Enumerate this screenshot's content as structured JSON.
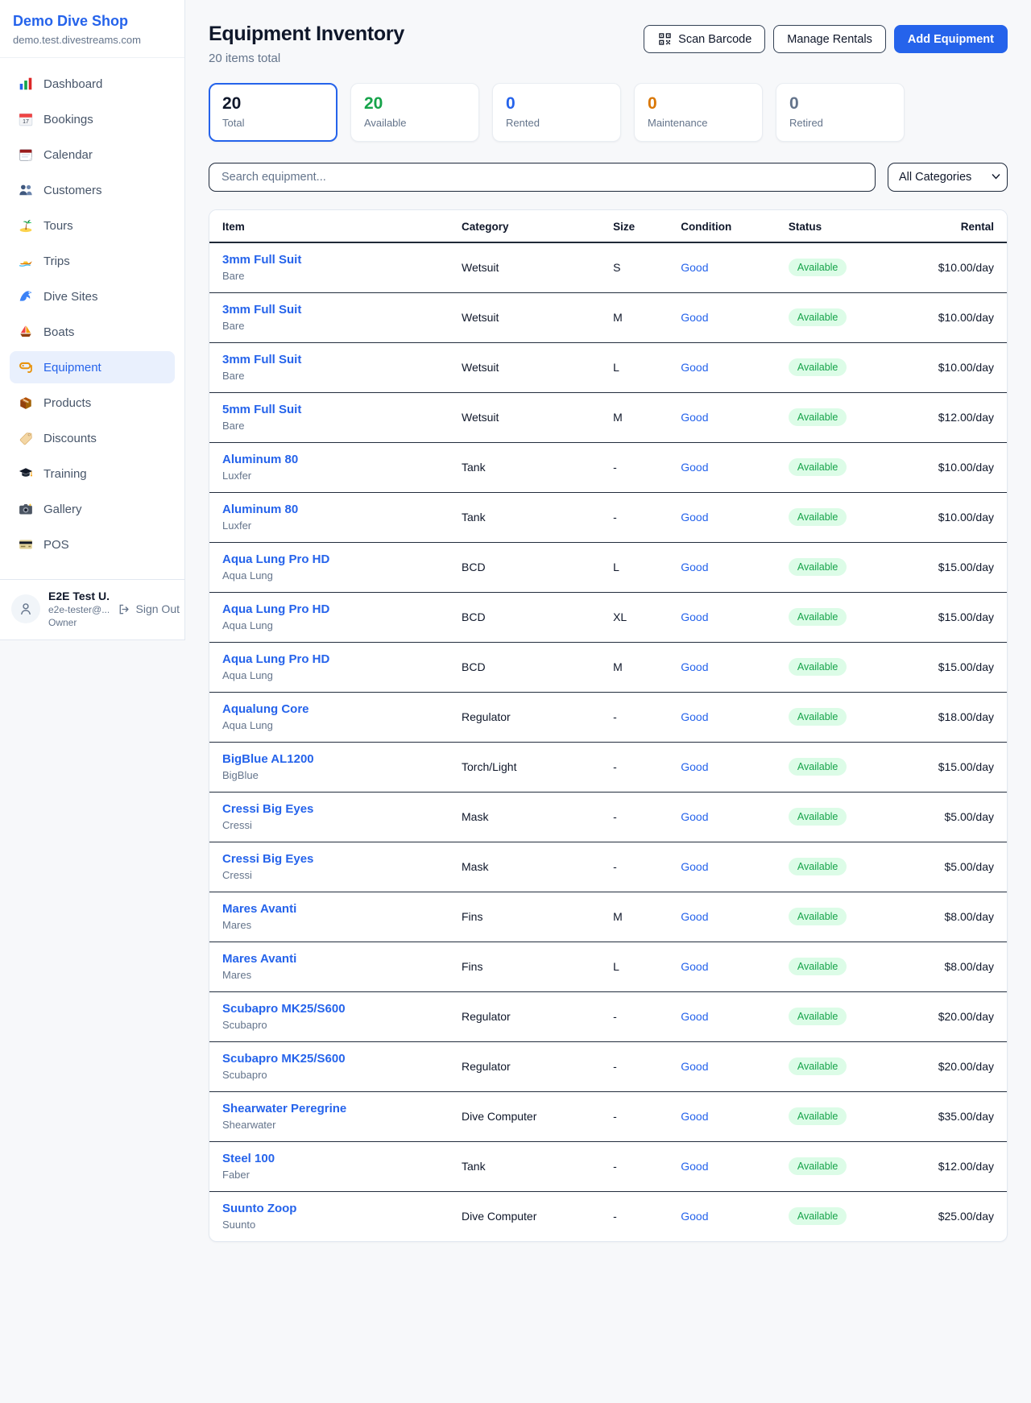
{
  "brand": {
    "name": "Demo Dive Shop",
    "domain": "demo.test.divestreams.com"
  },
  "sidebar": {
    "items": [
      {
        "icon": "dashboard-icon",
        "label": "Dashboard",
        "active": false
      },
      {
        "icon": "bookings-icon",
        "label": "Bookings",
        "active": false
      },
      {
        "icon": "calendar-icon",
        "label": "Calendar",
        "active": false
      },
      {
        "icon": "customers-icon",
        "label": "Customers",
        "active": false
      },
      {
        "icon": "tours-icon",
        "label": "Tours",
        "active": false
      },
      {
        "icon": "trips-icon",
        "label": "Trips",
        "active": false
      },
      {
        "icon": "dive-sites-icon",
        "label": "Dive Sites",
        "active": false
      },
      {
        "icon": "boats-icon",
        "label": "Boats",
        "active": false
      },
      {
        "icon": "equipment-icon",
        "label": "Equipment",
        "active": true
      },
      {
        "icon": "products-icon",
        "label": "Products",
        "active": false
      },
      {
        "icon": "discounts-icon",
        "label": "Discounts",
        "active": false
      },
      {
        "icon": "training-icon",
        "label": "Training",
        "active": false
      },
      {
        "icon": "gallery-icon",
        "label": "Gallery",
        "active": false
      },
      {
        "icon": "pos-icon",
        "label": "POS",
        "active": false
      }
    ],
    "user": {
      "name": "E2E Test U...",
      "email": "e2e-tester@...",
      "role": "Owner",
      "sign_out_label": "Sign Out"
    }
  },
  "header": {
    "title": "Equipment Inventory",
    "subtitle": "20 items total",
    "scan_barcode_label": "Scan Barcode",
    "manage_rentals_label": "Manage Rentals",
    "add_equipment_label": "Add Equipment"
  },
  "stats": [
    {
      "value": "20",
      "label": "Total",
      "color": "#0f172a",
      "selected": true
    },
    {
      "value": "20",
      "label": "Available",
      "color": "#16a34a",
      "selected": false
    },
    {
      "value": "0",
      "label": "Rented",
      "color": "#2563eb",
      "selected": false
    },
    {
      "value": "0",
      "label": "Maintenance",
      "color": "#d97706",
      "selected": false
    },
    {
      "value": "0",
      "label": "Retired",
      "color": "#64748b",
      "selected": false
    }
  ],
  "filters": {
    "search_placeholder": "Search equipment...",
    "category_selected": "All Categories"
  },
  "table": {
    "columns": [
      "Item",
      "Category",
      "Size",
      "Condition",
      "Status",
      "Rental"
    ],
    "rows": [
      {
        "name": "3mm Full Suit",
        "brand": "Bare",
        "category": "Wetsuit",
        "size": "S",
        "condition": "Good",
        "status": "Available",
        "rental": "$10.00/day"
      },
      {
        "name": "3mm Full Suit",
        "brand": "Bare",
        "category": "Wetsuit",
        "size": "M",
        "condition": "Good",
        "status": "Available",
        "rental": "$10.00/day"
      },
      {
        "name": "3mm Full Suit",
        "brand": "Bare",
        "category": "Wetsuit",
        "size": "L",
        "condition": "Good",
        "status": "Available",
        "rental": "$10.00/day"
      },
      {
        "name": "5mm Full Suit",
        "brand": "Bare",
        "category": "Wetsuit",
        "size": "M",
        "condition": "Good",
        "status": "Available",
        "rental": "$12.00/day"
      },
      {
        "name": "Aluminum 80",
        "brand": "Luxfer",
        "category": "Tank",
        "size": "-",
        "condition": "Good",
        "status": "Available",
        "rental": "$10.00/day"
      },
      {
        "name": "Aluminum 80",
        "brand": "Luxfer",
        "category": "Tank",
        "size": "-",
        "condition": "Good",
        "status": "Available",
        "rental": "$10.00/day"
      },
      {
        "name": "Aqua Lung Pro HD",
        "brand": "Aqua Lung",
        "category": "BCD",
        "size": "L",
        "condition": "Good",
        "status": "Available",
        "rental": "$15.00/day"
      },
      {
        "name": "Aqua Lung Pro HD",
        "brand": "Aqua Lung",
        "category": "BCD",
        "size": "XL",
        "condition": "Good",
        "status": "Available",
        "rental": "$15.00/day"
      },
      {
        "name": "Aqua Lung Pro HD",
        "brand": "Aqua Lung",
        "category": "BCD",
        "size": "M",
        "condition": "Good",
        "status": "Available",
        "rental": "$15.00/day"
      },
      {
        "name": "Aqualung Core",
        "brand": "Aqua Lung",
        "category": "Regulator",
        "size": "-",
        "condition": "Good",
        "status": "Available",
        "rental": "$18.00/day"
      },
      {
        "name": "BigBlue AL1200",
        "brand": "BigBlue",
        "category": "Torch/Light",
        "size": "-",
        "condition": "Good",
        "status": "Available",
        "rental": "$15.00/day"
      },
      {
        "name": "Cressi Big Eyes",
        "brand": "Cressi",
        "category": "Mask",
        "size": "-",
        "condition": "Good",
        "status": "Available",
        "rental": "$5.00/day"
      },
      {
        "name": "Cressi Big Eyes",
        "brand": "Cressi",
        "category": "Mask",
        "size": "-",
        "condition": "Good",
        "status": "Available",
        "rental": "$5.00/day"
      },
      {
        "name": "Mares Avanti",
        "brand": "Mares",
        "category": "Fins",
        "size": "M",
        "condition": "Good",
        "status": "Available",
        "rental": "$8.00/day"
      },
      {
        "name": "Mares Avanti",
        "brand": "Mares",
        "category": "Fins",
        "size": "L",
        "condition": "Good",
        "status": "Available",
        "rental": "$8.00/day"
      },
      {
        "name": "Scubapro MK25/S600",
        "brand": "Scubapro",
        "category": "Regulator",
        "size": "-",
        "condition": "Good",
        "status": "Available",
        "rental": "$20.00/day"
      },
      {
        "name": "Scubapro MK25/S600",
        "brand": "Scubapro",
        "category": "Regulator",
        "size": "-",
        "condition": "Good",
        "status": "Available",
        "rental": "$20.00/day"
      },
      {
        "name": "Shearwater Peregrine",
        "brand": "Shearwater",
        "category": "Dive Computer",
        "size": "-",
        "condition": "Good",
        "status": "Available",
        "rental": "$35.00/day"
      },
      {
        "name": "Steel 100",
        "brand": "Faber",
        "category": "Tank",
        "size": "-",
        "condition": "Good",
        "status": "Available",
        "rental": "$12.00/day"
      },
      {
        "name": "Suunto Zoop",
        "brand": "Suunto",
        "category": "Dive Computer",
        "size": "-",
        "condition": "Good",
        "status": "Available",
        "rental": "$25.00/day"
      }
    ]
  }
}
